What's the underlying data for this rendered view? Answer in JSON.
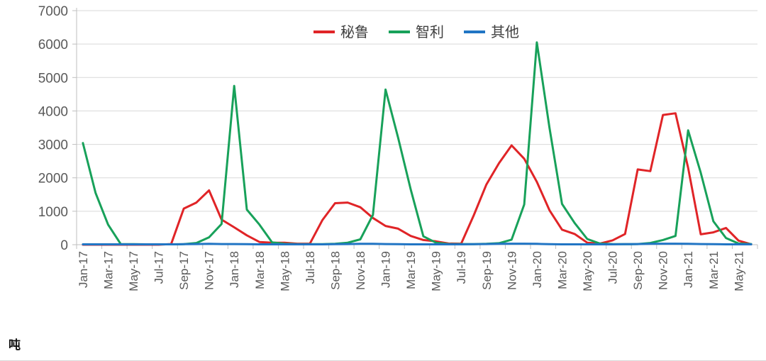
{
  "chart_data": {
    "type": "line",
    "title": "",
    "unit_label": "吨",
    "x": [
      "Jan-17",
      "Feb-17",
      "Mar-17",
      "Apr-17",
      "May-17",
      "Jun-17",
      "Jul-17",
      "Aug-17",
      "Sep-17",
      "Oct-17",
      "Nov-17",
      "Dec-17",
      "Jan-18",
      "Feb-18",
      "Mar-18",
      "Apr-18",
      "May-18",
      "Jun-18",
      "Jul-18",
      "Aug-18",
      "Sep-18",
      "Oct-18",
      "Nov-18",
      "Dec-18",
      "Jan-19",
      "Feb-19",
      "Mar-19",
      "Apr-19",
      "May-19",
      "Jun-19",
      "Jul-19",
      "Aug-19",
      "Sep-19",
      "Oct-19",
      "Nov-19",
      "Dec-19",
      "Jan-20",
      "Feb-20",
      "Mar-20",
      "Apr-20",
      "May-20",
      "Jun-20",
      "Jul-20",
      "Aug-20",
      "Sep-20",
      "Oct-20",
      "Nov-20",
      "Dec-20",
      "Jan-21",
      "Feb-21",
      "Mar-21",
      "Apr-21",
      "May-21",
      "Jun-21"
    ],
    "x_label_every": 2,
    "series": [
      {
        "name": "秘鲁",
        "slug": "peru",
        "color": "#e02427",
        "values": [
          0,
          0,
          0,
          0,
          0,
          0,
          0,
          20,
          1080,
          1260,
          1625,
          750,
          520,
          280,
          80,
          60,
          60,
          30,
          30,
          740,
          1240,
          1260,
          1120,
          800,
          560,
          480,
          260,
          140,
          100,
          35,
          30,
          880,
          1800,
          2440,
          2970,
          2570,
          1880,
          1030,
          450,
          320,
          60,
          35,
          130,
          320,
          2250,
          2200,
          3880,
          3930,
          2300,
          310,
          370,
          500,
          120,
          10
        ]
      },
      {
        "name": "智利",
        "slug": "chile",
        "color": "#18a15a",
        "values": [
          3040,
          1550,
          600,
          20,
          15,
          10,
          10,
          10,
          15,
          50,
          220,
          620,
          4750,
          1050,
          600,
          70,
          25,
          15,
          15,
          15,
          25,
          60,
          160,
          890,
          4640,
          3200,
          1650,
          250,
          60,
          20,
          20,
          15,
          25,
          45,
          150,
          1200,
          6050,
          3500,
          1220,
          650,
          170,
          35,
          20,
          15,
          20,
          50,
          140,
          260,
          3420,
          2150,
          700,
          200,
          35,
          20
        ]
      },
      {
        "name": "其他",
        "slug": "other",
        "color": "#2175c4",
        "values": [
          10,
          10,
          10,
          10,
          10,
          10,
          10,
          10,
          15,
          20,
          25,
          20,
          20,
          15,
          10,
          10,
          10,
          10,
          10,
          10,
          15,
          20,
          25,
          25,
          20,
          15,
          10,
          10,
          10,
          10,
          10,
          15,
          20,
          25,
          30,
          30,
          25,
          15,
          10,
          10,
          10,
          10,
          10,
          15,
          20,
          25,
          30,
          30,
          25,
          20,
          15,
          10,
          10,
          10
        ]
      }
    ],
    "ylim": [
      0,
      7000
    ],
    "y_ticks": [
      0,
      1000,
      2000,
      3000,
      4000,
      5000,
      6000,
      7000
    ],
    "grid": "horizontal",
    "legend_position": "top-center"
  },
  "style_colors": {
    "gridline": "#d9d9d9",
    "axis_line": "#bfbfbf",
    "tick_mark": "#bfbfbf",
    "axis_text": "#595959",
    "legend_text": "#404040"
  }
}
